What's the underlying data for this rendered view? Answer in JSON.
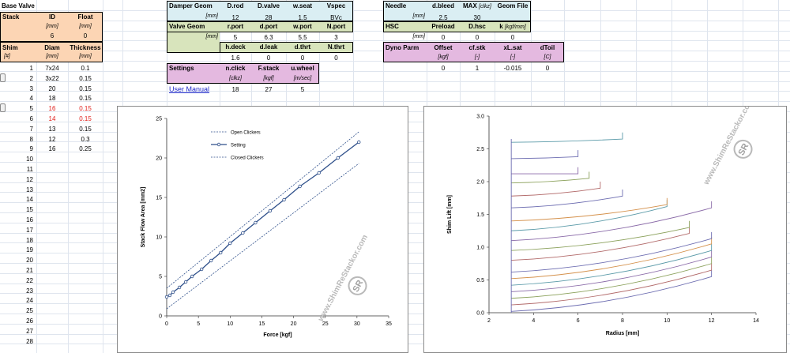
{
  "base_valve": {
    "title": "Base Valve",
    "headers": [
      "Stack",
      "ID",
      "Float"
    ],
    "units": [
      "[mm]",
      "[mm]"
    ],
    "values": [
      "6",
      "0"
    ],
    "shim_headers": [
      "Shim",
      "Diam",
      "Thickness"
    ],
    "shim_units": [
      "[#]",
      "[mm]",
      "[mm]"
    ],
    "rows": [
      {
        "n": "1",
        "diam": "7x24",
        "thk": "0.1",
        "red": false
      },
      {
        "n": "2",
        "diam": "3x22",
        "thk": "0.15",
        "red": false
      },
      {
        "n": "3",
        "diam": "20",
        "thk": "0.15",
        "red": false
      },
      {
        "n": "4",
        "diam": "18",
        "thk": "0.15",
        "red": false
      },
      {
        "n": "5",
        "diam": "16",
        "thk": "0.15",
        "red": true
      },
      {
        "n": "6",
        "diam": "14",
        "thk": "0.15",
        "red": true
      },
      {
        "n": "7",
        "diam": "13",
        "thk": "0.15",
        "red": false
      },
      {
        "n": "8",
        "diam": "12",
        "thk": "0.3",
        "red": false
      },
      {
        "n": "9",
        "diam": "16",
        "thk": "0.25",
        "red": false
      }
    ],
    "empty_rows": [
      "10",
      "11",
      "12",
      "13",
      "14",
      "15",
      "16",
      "17",
      "18",
      "19",
      "20",
      "21",
      "22",
      "23",
      "24",
      "25",
      "26",
      "27",
      "28"
    ]
  },
  "damper": {
    "geom_label": "Damper Geom",
    "geom_headers": [
      "D.rod",
      "D.valve",
      "w.seat",
      "Vspec"
    ],
    "unit": "[mm]",
    "geom_values": [
      "12",
      "28",
      "1.5",
      "BVc"
    ],
    "valve_label": "Valve Geom",
    "valve_headers1": [
      "r.port",
      "d.port",
      "w.port",
      "N.port"
    ],
    "valve_values1": [
      "5",
      "6.3",
      "5.5",
      "3"
    ],
    "valve_headers2": [
      "h.deck",
      "d.leak",
      "d.thrt",
      "N.thrt"
    ],
    "valve_values2": [
      "1.6",
      "0",
      "0",
      "0"
    ],
    "settings_label": "Settings",
    "settings_headers": [
      "n.click",
      "F.stack",
      "u.wheel"
    ],
    "settings_units": [
      "[clkz]",
      "[kgf]",
      "[m/sec]"
    ],
    "settings_values": [
      "18",
      "27",
      "5"
    ],
    "manual_link": "User Manual"
  },
  "needle": {
    "label": "Needle",
    "headers": [
      "d.bleed",
      "MAX",
      "Geom File"
    ],
    "max_unit": "[clkz]",
    "unit": "[mm]",
    "values": [
      "2.5",
      "30"
    ],
    "hsc_label": "HSC",
    "hsc_headers": [
      "Preload",
      "D.hsc",
      "k"
    ],
    "k_unit": "[kgf/mm]",
    "hsc_unit": "[mm]",
    "hsc_values": [
      "0",
      "0",
      "0"
    ],
    "dyno_label": "Dyno Parm",
    "dyno_headers": [
      "Offset",
      "cf.stk",
      "xL.sat",
      "dToil"
    ],
    "dyno_units": [
      "[kgf]",
      "[-]",
      "[-]",
      "[C]"
    ],
    "dyno_values": [
      "0",
      "1",
      "-0.015",
      "0"
    ]
  },
  "watermark": {
    "text": "www.ShimReStackor.com",
    "logo": "SR"
  },
  "chart_data": [
    {
      "type": "line",
      "title": "",
      "xlabel": "Force [kgf]",
      "ylabel": "Stack Flow Area [mm2]",
      "xlim": [
        0,
        35
      ],
      "ylim": [
        0,
        25
      ],
      "xticks": [
        "0",
        "5",
        "10",
        "15",
        "20",
        "25",
        "30",
        "35"
      ],
      "yticks": [
        "0",
        "5",
        "10",
        "15",
        "20",
        "25"
      ],
      "legend_position": "top-left",
      "series": [
        {
          "name": "Open Clickers",
          "style": "dotted",
          "color": "#2e4f8a",
          "x": [
            0,
            30.3
          ],
          "y": [
            3.5,
            23.3
          ]
        },
        {
          "name": "Setting",
          "style": "solid-markers",
          "color": "#2e4f8a",
          "x": [
            0,
            0.5,
            1,
            2,
            3,
            4,
            5.5,
            7,
            8.5,
            10,
            12,
            14,
            16.3,
            18.5,
            21,
            24,
            27,
            30.3
          ],
          "y": [
            2.4,
            2.6,
            3.0,
            3.6,
            4.3,
            5.0,
            5.9,
            7.0,
            8.0,
            9.2,
            10.5,
            11.8,
            13.3,
            14.7,
            16.4,
            18.1,
            20.0,
            22.0
          ]
        },
        {
          "name": "Closed Clickers",
          "style": "dotted",
          "color": "#2e4f8a",
          "x": [
            0,
            30.3
          ],
          "y": [
            0.9,
            19.3
          ]
        }
      ]
    },
    {
      "type": "line",
      "title": "",
      "xlabel": "Radius [mm]",
      "ylabel": "Shim Lift [mm]",
      "xlim": [
        2,
        14
      ],
      "ylim": [
        0,
        3.0
      ],
      "xticks": [
        "2",
        "4",
        "6",
        "8",
        "10",
        "12",
        "14"
      ],
      "yticks": [
        "0.0",
        "0.5",
        "1.0",
        "1.5",
        "2.0",
        "2.5",
        "3.0"
      ],
      "series": [
        {
          "color": "#6b6bb0",
          "x": [
            3,
            12
          ],
          "y": [
            0.02,
            0.55
          ]
        },
        {
          "color": "#b26a6a",
          "x": [
            3,
            12
          ],
          "y": [
            0.12,
            0.65
          ]
        },
        {
          "color": "#8aa05a",
          "x": [
            3,
            12
          ],
          "y": [
            0.22,
            0.75
          ]
        },
        {
          "color": "#8a6aa8",
          "x": [
            3,
            12
          ],
          "y": [
            0.32,
            0.85
          ]
        },
        {
          "color": "#5a9aa8",
          "x": [
            3,
            12
          ],
          "y": [
            0.42,
            0.95
          ]
        },
        {
          "color": "#d4904a",
          "x": [
            3,
            12
          ],
          "y": [
            0.52,
            1.05
          ]
        },
        {
          "color": "#6b6bb0",
          "x": [
            3,
            12
          ],
          "y": [
            0.62,
            1.13
          ]
        },
        {
          "color": "#b26a6a",
          "x": [
            3,
            11
          ],
          "y": [
            0.8,
            1.21
          ]
        },
        {
          "color": "#8aa05a",
          "x": [
            3,
            11
          ],
          "y": [
            0.95,
            1.3
          ]
        },
        {
          "color": "#8a6aa8",
          "x": [
            3,
            12
          ],
          "y": [
            1.1,
            1.6
          ]
        },
        {
          "color": "#5a9aa8",
          "x": [
            3,
            10
          ],
          "y": [
            1.25,
            1.62
          ]
        },
        {
          "color": "#d4904a",
          "x": [
            3,
            10
          ],
          "y": [
            1.4,
            1.65
          ]
        },
        {
          "color": "#6b6bb0",
          "x": [
            3,
            8
          ],
          "y": [
            1.6,
            1.78
          ]
        },
        {
          "color": "#b26a6a",
          "x": [
            3,
            7
          ],
          "y": [
            1.78,
            1.9
          ]
        },
        {
          "color": "#8aa05a",
          "x": [
            3,
            6.5
          ],
          "y": [
            1.98,
            2.05
          ]
        },
        {
          "color": "#8a6aa8",
          "x": [
            3,
            6
          ],
          "y": [
            2.12,
            2.12
          ]
        },
        {
          "color": "#6b6bb0",
          "x": [
            3,
            6
          ],
          "y": [
            2.35,
            2.38
          ]
        },
        {
          "color": "#5a9aa8",
          "x": [
            3,
            8
          ],
          "y": [
            2.6,
            2.65
          ]
        }
      ]
    }
  ]
}
